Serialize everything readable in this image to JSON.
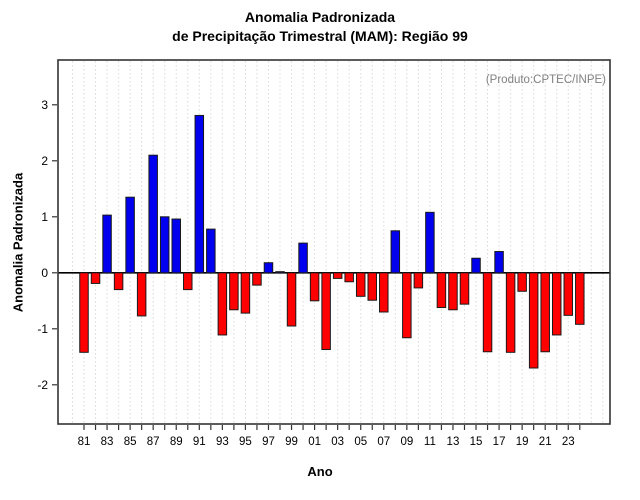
{
  "title_line1": "Anomalia Padronizada",
  "title_line2": "de Precipitação Trimestral (MAM): Região 99",
  "annotation": "(Produto:CPTEC/INPE)",
  "chart_data": {
    "type": "bar",
    "title": "Anomalia Padronizada de Precipitação Trimestral (MAM): Região 99",
    "xlabel": "Ano",
    "ylabel": "Anomalia Padronizada",
    "years": [
      1981,
      1982,
      1983,
      1984,
      1985,
      1986,
      1987,
      1988,
      1989,
      1990,
      1991,
      1992,
      1993,
      1994,
      1995,
      1996,
      1997,
      1998,
      1999,
      2000,
      2001,
      2002,
      2003,
      2004,
      2005,
      2006,
      2007,
      2008,
      2009,
      2010,
      2011,
      2012,
      2013,
      2014,
      2015,
      2016,
      2017,
      2018,
      2019,
      2020,
      2021,
      2022,
      2023,
      2024
    ],
    "values": [
      -1.42,
      -0.19,
      1.03,
      -0.3,
      1.35,
      -0.77,
      2.1,
      1.0,
      0.96,
      -0.3,
      2.81,
      0.78,
      -1.11,
      -0.66,
      -0.72,
      -0.22,
      0.18,
      0.02,
      -0.95,
      0.53,
      -0.5,
      -1.37,
      -0.1,
      -0.16,
      -0.42,
      -0.49,
      -0.7,
      0.75,
      -1.16,
      -0.27,
      1.08,
      -0.62,
      -0.66,
      -0.56,
      0.26,
      -1.41,
      0.38,
      -1.42,
      -0.33,
      -1.7,
      -1.41,
      -1.11,
      -0.76,
      -0.92
    ],
    "x_tick_labels": [
      "81",
      "83",
      "85",
      "87",
      "89",
      "91",
      "93",
      "95",
      "97",
      "99",
      "01",
      "03",
      "05",
      "07",
      "09",
      "11",
      "13",
      "15",
      "17",
      "19",
      "21",
      "23"
    ],
    "y_tick_values": [
      -2,
      -1,
      0,
      1,
      2,
      3
    ],
    "y_tick_labels": [
      "-2",
      "-1",
      "0",
      "1",
      "2",
      "3"
    ],
    "ylim": [
      -2.7,
      3.8
    ],
    "grid": "vertical-dotted",
    "legend": "none",
    "colors": {
      "positive_bar": "#0000ee",
      "negative_bar": "#ff0000",
      "bar_border": "#1a1a1a",
      "grid_line": "#d9d9d9",
      "axis": "#333333",
      "zero_line": "#000000",
      "annotation_text": "#808080"
    }
  }
}
